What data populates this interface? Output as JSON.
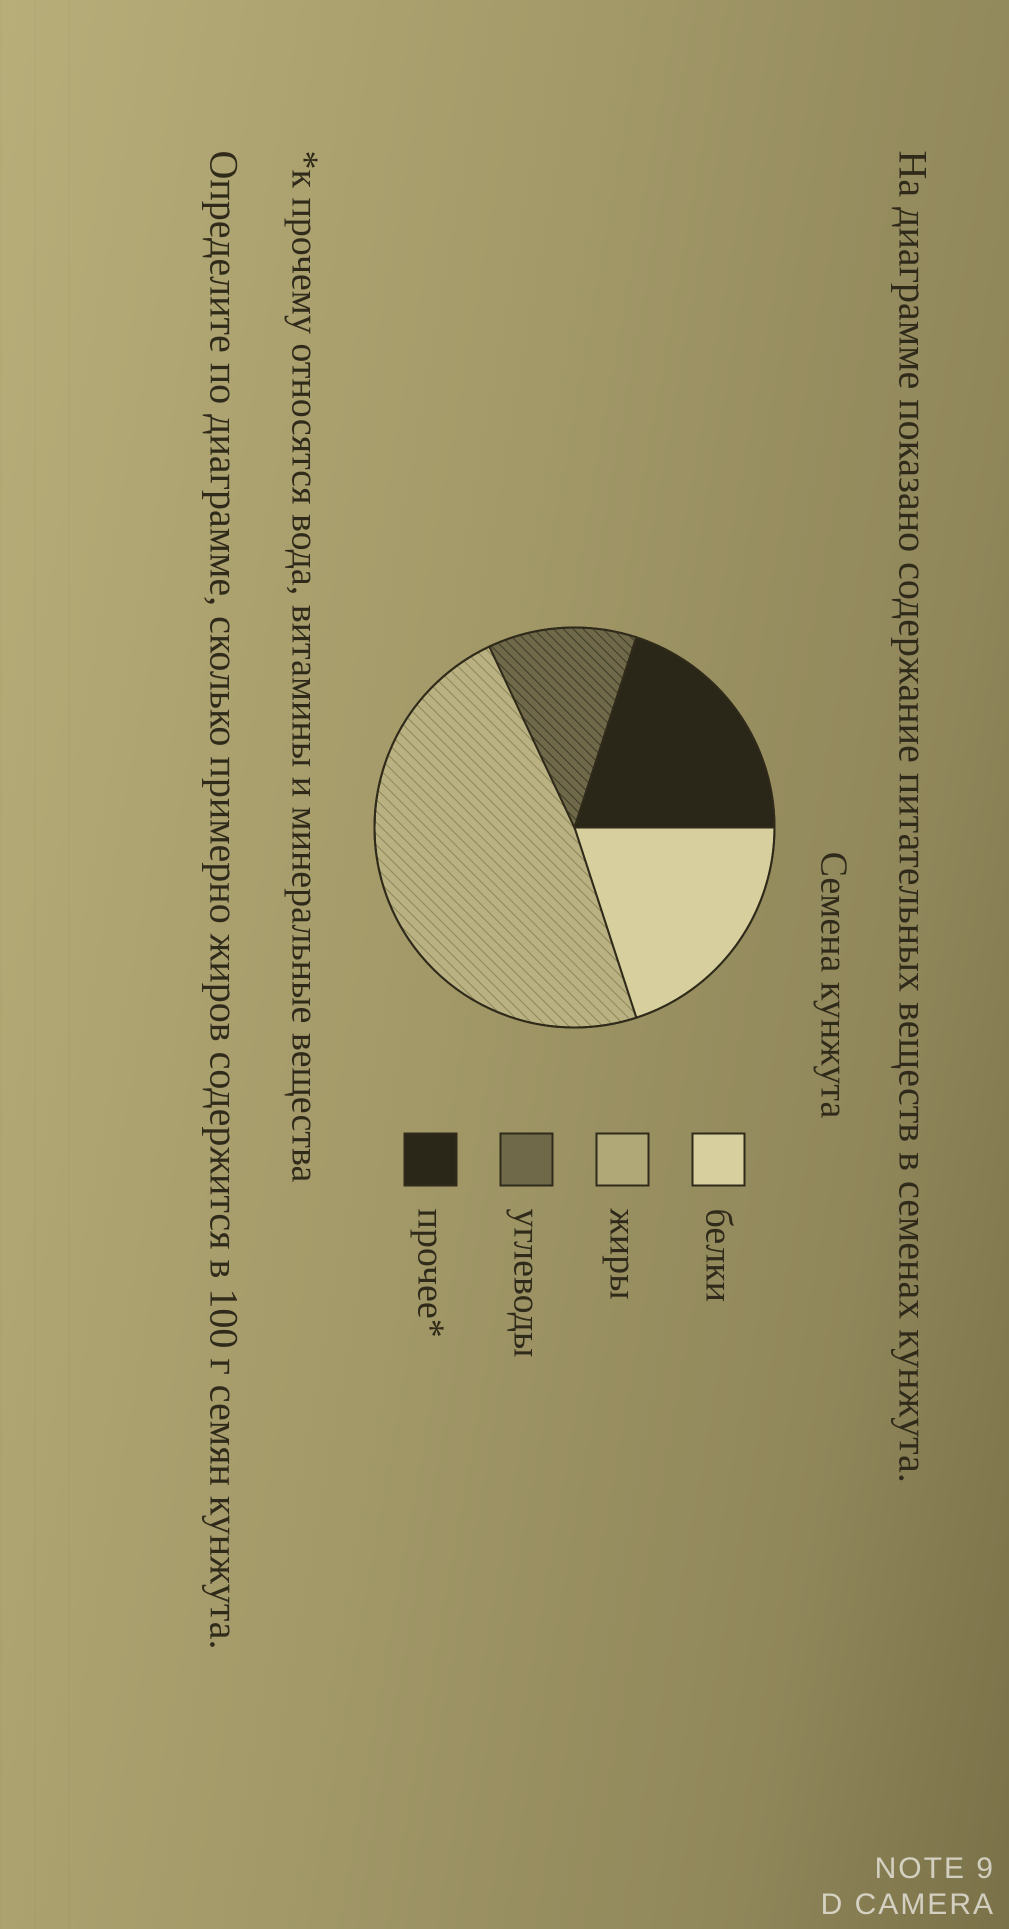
{
  "text": {
    "intro": "На диаграмме показано содержание питательных веществ в семенах кунжута.",
    "chart_title": "Семена кунжута",
    "footnote": "*к прочему относятся вода, витамины и минеральные вещества",
    "question": "Определите по диаграмме, сколько примерно жиров содержится в 100 г семян кунжута."
  },
  "pie": {
    "type": "pie",
    "background_color": "transparent",
    "stroke_color": "#2f2a1a",
    "stroke_width": 2,
    "radius": 200,
    "slices": [
      {
        "key": "belki",
        "label": "белки",
        "value": 20,
        "fill": "#d7cf9d"
      },
      {
        "key": "zhiry",
        "label": "жиры",
        "value": 48,
        "fill": "#b0a877",
        "pattern": "hatch-light"
      },
      {
        "key": "uglevody",
        "label": "углеводы",
        "value": 12,
        "fill": "#6f694a",
        "pattern": "hatch-dark"
      },
      {
        "key": "prochee",
        "label": "прочее*",
        "value": 20,
        "fill": "#2b2718"
      }
    ],
    "start_angle_deg": -90
  },
  "legend": {
    "items": [
      {
        "key": "belki",
        "label": "белки",
        "fill": "#d7cf9d"
      },
      {
        "key": "zhiry",
        "label": "жиры",
        "fill": "#b0a877"
      },
      {
        "key": "uglevody",
        "label": "углеводы",
        "fill": "#6f694a"
      },
      {
        "key": "prochee",
        "label": "прочее*",
        "fill": "#2b2718"
      }
    ]
  },
  "watermark": {
    "line1": "NOTE 9",
    "line2": "D CAMERA"
  }
}
